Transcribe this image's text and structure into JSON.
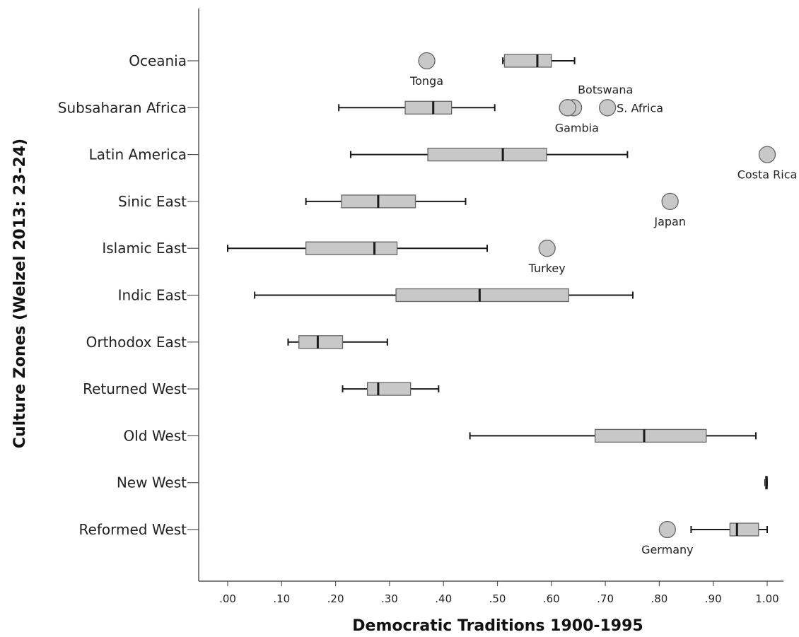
{
  "chart_data": {
    "type": "boxplot",
    "orientation": "horizontal",
    "xlabel": "Democratic Traditions 1900-1995",
    "ylabel": "Culture Zones (Welzel 2013: 23-24)",
    "xlim": [
      -0.05,
      1.05
    ],
    "xticks": [
      {
        "value": 0.0,
        "label": ".00"
      },
      {
        "value": 0.1,
        "label": ".10"
      },
      {
        "value": 0.2,
        "label": ".20"
      },
      {
        "value": 0.3,
        "label": ".30"
      },
      {
        "value": 0.4,
        "label": ".40"
      },
      {
        "value": 0.5,
        "label": ".50"
      },
      {
        "value": 0.6,
        "label": ".60"
      },
      {
        "value": 0.7,
        "label": ".70"
      },
      {
        "value": 0.8,
        "label": ".80"
      },
      {
        "value": 0.9,
        "label": ".90"
      },
      {
        "value": 1.0,
        "label": "1.00"
      }
    ],
    "colors": {
      "box": "#c8c8c8",
      "stroke": "#1a1a1a",
      "outlier": "#c8c8c8"
    },
    "categories": [
      {
        "name": "Oceania",
        "whisker_low": 0.51,
        "q1": 0.513,
        "median": 0.574,
        "q3": 0.6,
        "whisker_high": 0.643,
        "outliers": [
          {
            "value": 0.369,
            "label": "Tonga",
            "label_pos": "below"
          }
        ]
      },
      {
        "name": "Subsaharan Africa",
        "whisker_low": 0.206,
        "q1": 0.329,
        "median": 0.381,
        "q3": 0.415,
        "whisker_high": 0.495,
        "outliers": [
          {
            "value": 0.63,
            "label": "",
            "label_pos": "none"
          },
          {
            "value": 0.641,
            "label": "Botswana",
            "label_pos": "above-right"
          },
          {
            "value": 0.63,
            "label": "Gambia",
            "label_pos": "below-right"
          },
          {
            "value": 0.704,
            "label": "S. Africa",
            "label_pos": "right"
          }
        ]
      },
      {
        "name": "Latin America",
        "whisker_low": 0.228,
        "q1": 0.371,
        "median": 0.51,
        "q3": 0.591,
        "whisker_high": 0.741,
        "outliers": [
          {
            "value": 1.0,
            "label": "Costa Rica",
            "label_pos": "below"
          }
        ]
      },
      {
        "name": "Sinic East",
        "whisker_low": 0.145,
        "q1": 0.211,
        "median": 0.279,
        "q3": 0.348,
        "whisker_high": 0.441,
        "outliers": [
          {
            "value": 0.82,
            "label": "Japan",
            "label_pos": "below"
          }
        ]
      },
      {
        "name": "Islamic East",
        "whisker_low": 0.0,
        "q1": 0.145,
        "median": 0.272,
        "q3": 0.314,
        "whisker_high": 0.481,
        "outliers": [
          {
            "value": 0.592,
            "label": "Turkey",
            "label_pos": "below"
          }
        ]
      },
      {
        "name": "Indic East",
        "whisker_low": 0.05,
        "q1": 0.312,
        "median": 0.467,
        "q3": 0.632,
        "whisker_high": 0.751,
        "outliers": []
      },
      {
        "name": "Orthodox East",
        "whisker_low": 0.112,
        "q1": 0.132,
        "median": 0.167,
        "q3": 0.213,
        "whisker_high": 0.296,
        "outliers": []
      },
      {
        "name": "Returned West",
        "whisker_low": 0.213,
        "q1": 0.259,
        "median": 0.279,
        "q3": 0.339,
        "whisker_high": 0.391,
        "outliers": []
      },
      {
        "name": "Old West",
        "whisker_low": 0.449,
        "q1": 0.681,
        "median": 0.772,
        "q3": 0.887,
        "whisker_high": 0.979,
        "outliers": []
      },
      {
        "name": "New West",
        "whisker_low": 0.996,
        "q1": 0.997,
        "median": 0.999,
        "q3": 1.0,
        "whisker_high": 1.0,
        "outliers": []
      },
      {
        "name": "Reformed West",
        "whisker_low": 0.859,
        "q1": 0.931,
        "median": 0.944,
        "q3": 0.984,
        "whisker_high": 1.0,
        "outliers": [
          {
            "value": 0.815,
            "label": "Germany",
            "label_pos": "below"
          }
        ]
      }
    ]
  }
}
